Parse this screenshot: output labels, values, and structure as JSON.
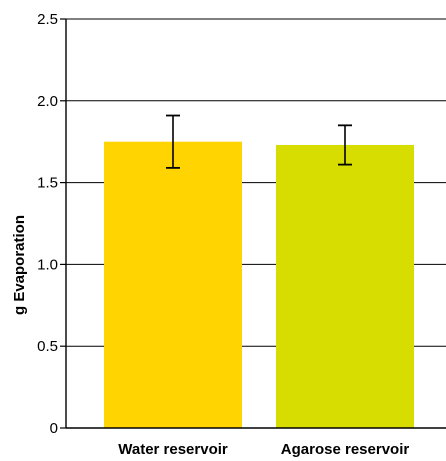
{
  "chart_data": {
    "type": "bar",
    "categories": [
      "Water reservoir",
      "Agarose reservoir"
    ],
    "values": [
      1.75,
      1.73
    ],
    "errors": [
      {
        "low": 1.59,
        "high": 1.91
      },
      {
        "low": 1.61,
        "high": 1.85
      }
    ],
    "ylabel": "g Evaporation",
    "ylim": [
      0,
      2.5
    ],
    "yticks": [
      0,
      0.5,
      1.0,
      1.5,
      2.0,
      2.5
    ],
    "ytick_labels": [
      "0",
      "0.5",
      "1.0",
      "1.5",
      "2.0",
      "2.5"
    ],
    "grid": true,
    "colors": [
      "#ffd400",
      "#d7dd00"
    ]
  }
}
